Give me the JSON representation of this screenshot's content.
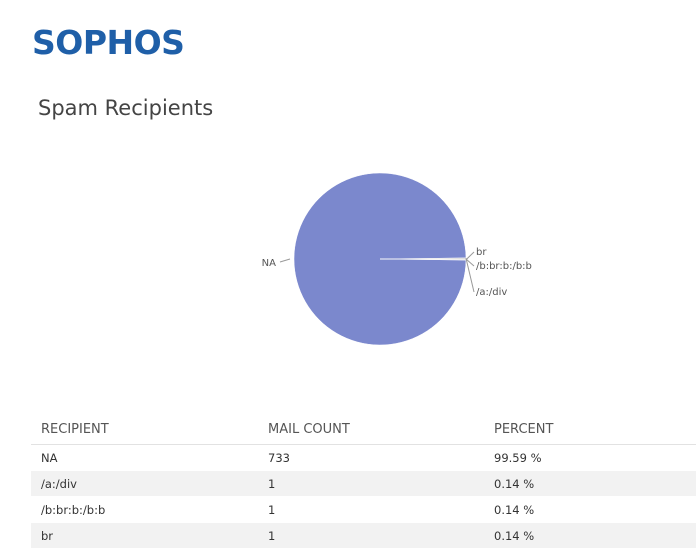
{
  "header": {
    "logo_text": "SOPHOS",
    "logo_color": "#1f5fa8"
  },
  "page": {
    "title": "Spam Recipients"
  },
  "chart_data": {
    "type": "pie",
    "title": "",
    "slices": [
      {
        "label": "NA",
        "value": 733,
        "color": "#7b88cd"
      },
      {
        "label": "br",
        "value": 1,
        "color": "#e6e6e6"
      },
      {
        "label": "/b:br:b:/b:b",
        "value": 1,
        "color": "#d0d0d0"
      },
      {
        "label": "/a:/div",
        "value": 1,
        "color": "#bbbbbb"
      }
    ]
  },
  "table": {
    "headers": [
      "RECIPIENT",
      "MAIL COUNT",
      "PERCENT"
    ],
    "rows": [
      [
        "NA",
        "733",
        "99.59 %"
      ],
      [
        "/a:/div",
        "1",
        "0.14 %"
      ],
      [
        "/b:br:b:/b:b",
        "1",
        "0.14 %"
      ],
      [
        "br",
        "1",
        "0.14 %"
      ]
    ]
  }
}
